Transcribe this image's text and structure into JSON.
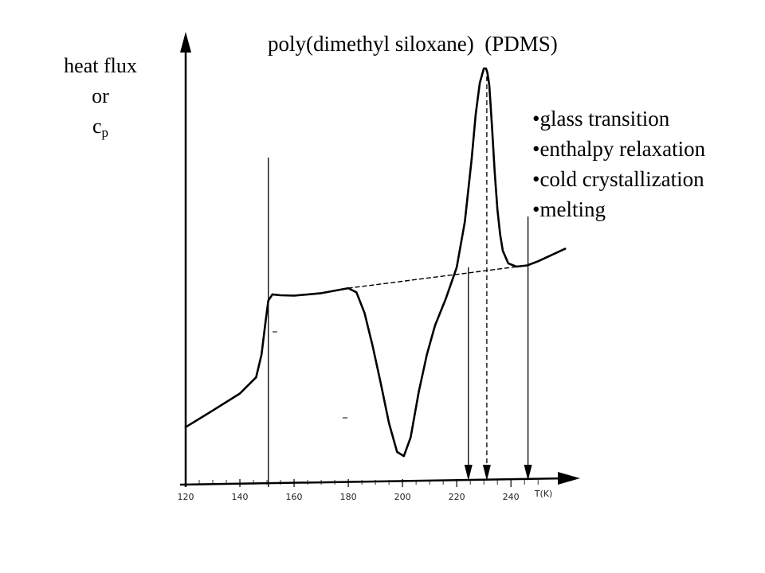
{
  "title": "poly(dimethyl siloxane)  (PDMS)",
  "ylabel": {
    "line1": "heat flux",
    "line2": "or",
    "line3_main": "c",
    "line3_sub": "p"
  },
  "events": [
    "•glass transition",
    "•enthalpy relaxation",
    "•cold crystallization",
    "•melting"
  ],
  "chart_data": {
    "type": "line",
    "title": "poly(dimethyl siloxane)  (PDMS)",
    "xlabel": "T(K)",
    "ylabel": "heat flux or cp",
    "xlim": [
      120,
      262
    ],
    "ylim": [
      0,
      100
    ],
    "x_ticks": [
      120,
      140,
      160,
      180,
      200,
      220,
      240
    ],
    "x_tick_labels": [
      "120",
      "140",
      "160",
      "180",
      "200",
      "220",
      "240"
    ],
    "grid": false,
    "series": [
      {
        "style": "solid",
        "x": [
          120,
          130,
          140,
          146,
          148,
          149.5,
          150.5,
          152,
          155,
          160,
          170,
          180,
          183,
          186,
          189,
          192,
          195,
          198,
          200.5,
          203,
          206,
          209,
          212,
          216,
          220,
          223,
          225.5,
          227,
          228.5,
          230,
          230.8,
          231.3,
          232,
          233,
          234,
          235,
          236,
          237,
          239,
          242,
          246,
          250,
          255,
          260
        ],
        "y": [
          13.5,
          17.5,
          21.6,
          25.5,
          31,
          39,
          44,
          45.5,
          45.3,
          45.2,
          45.8,
          47,
          46,
          41,
          33,
          24,
          14.5,
          7.5,
          6.5,
          11,
          22,
          31,
          38,
          44.5,
          52,
          63,
          78,
          89,
          96.5,
          100,
          100,
          99,
          96,
          86,
          75,
          66,
          60,
          56,
          53,
          52.2,
          52.5,
          53.5,
          55,
          56.5
        ]
      },
      {
        "name": "baseline",
        "style": "dashed",
        "x": [
          180,
          246
        ],
        "y": [
          47,
          52.5
        ]
      }
    ],
    "markers": [
      {
        "x": 150.5,
        "style": "solid",
        "arrow": false
      },
      {
        "x": 224.3,
        "style": "solid",
        "arrow": true
      },
      {
        "x": 231.1,
        "style": "dashed",
        "arrow": true
      },
      {
        "x": 246.3,
        "style": "solid",
        "arrow": true
      }
    ]
  }
}
